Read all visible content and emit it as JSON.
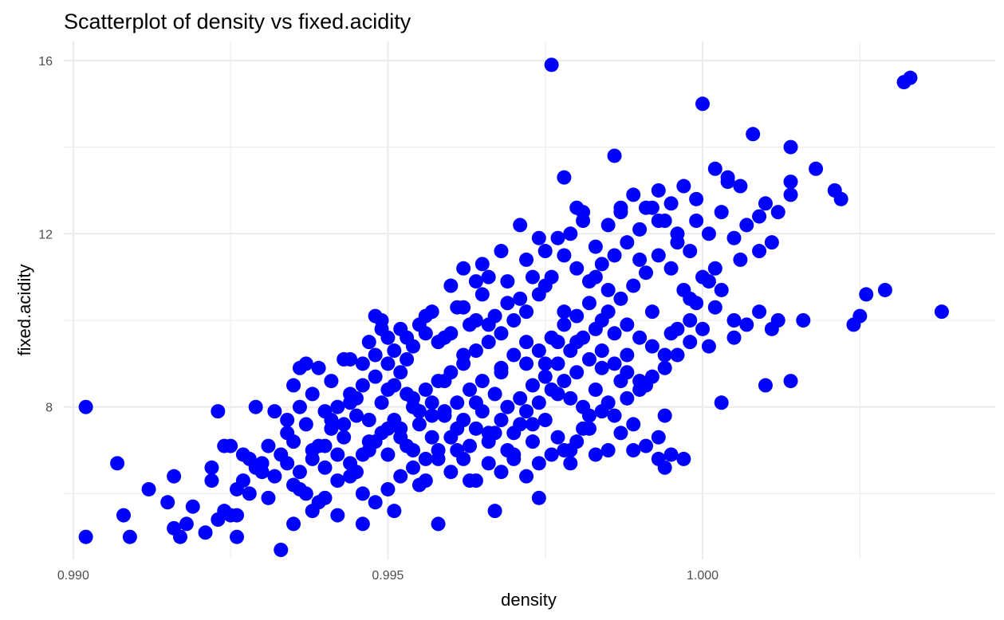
{
  "chart_data": {
    "type": "scatter",
    "title": "Scatterplot of density vs fixed.acidity",
    "xlabel": "density",
    "ylabel": "fixed.acidity",
    "xlim": [
      0.98985,
      1.00465
    ],
    "ylim": [
      4.48,
      16.44
    ],
    "x_ticks": [
      0.99,
      0.995,
      1.0
    ],
    "x_tick_labels": [
      "0.990",
      "0.995",
      "1.000"
    ],
    "y_ticks": [
      8,
      12,
      16
    ],
    "y_tick_labels": [
      "8",
      "12",
      "16"
    ],
    "grid": true,
    "point_color": "#0000ff",
    "points": [
      [
        0.9902,
        8.0
      ],
      [
        0.9902,
        5.0
      ],
      [
        0.9907,
        6.7
      ],
      [
        0.9908,
        5.5
      ],
      [
        0.9909,
        5.0
      ],
      [
        0.9912,
        6.1
      ],
      [
        0.9915,
        5.8
      ],
      [
        0.9916,
        6.4
      ],
      [
        0.9916,
        5.2
      ],
      [
        0.9917,
        5.0
      ],
      [
        0.9918,
        5.3
      ],
      [
        0.9919,
        5.7
      ],
      [
        0.9921,
        5.1
      ],
      [
        0.9922,
        6.6
      ],
      [
        0.9922,
        6.3
      ],
      [
        0.9923,
        7.9
      ],
      [
        0.9924,
        7.1
      ],
      [
        0.9925,
        5.5
      ],
      [
        0.9926,
        5.0
      ],
      [
        0.9928,
        6.8
      ],
      [
        0.9929,
        8.0
      ],
      [
        0.993,
        6.5
      ],
      [
        0.9931,
        5.9
      ],
      [
        0.9932,
        7.9
      ],
      [
        0.9933,
        4.7
      ],
      [
        0.9934,
        7.4
      ],
      [
        0.9935,
        6.2
      ],
      [
        0.9935,
        5.3
      ],
      [
        0.9936,
        8.9
      ],
      [
        0.9937,
        6.0
      ],
      [
        0.9938,
        7.0
      ],
      [
        0.9939,
        5.8
      ],
      [
        0.994,
        6.6
      ],
      [
        0.9941,
        7.7
      ],
      [
        0.9942,
        6.3
      ],
      [
        0.9943,
        9.1
      ],
      [
        0.9944,
        8.1
      ],
      [
        0.9945,
        6.5
      ],
      [
        0.9946,
        5.3
      ],
      [
        0.9947,
        7.2
      ],
      [
        0.9948,
        10.1
      ],
      [
        0.9949,
        9.8
      ],
      [
        0.995,
        8.4
      ],
      [
        0.995,
        6.9
      ],
      [
        0.9951,
        5.6
      ],
      [
        0.9952,
        7.5
      ],
      [
        0.9953,
        9.6
      ],
      [
        0.9954,
        8.0
      ],
      [
        0.9955,
        6.2
      ],
      [
        0.9956,
        10.1
      ],
      [
        0.9957,
        7.8
      ],
      [
        0.9958,
        5.3
      ],
      [
        0.9959,
        8.6
      ],
      [
        0.996,
        10.8
      ],
      [
        0.9961,
        7.0
      ],
      [
        0.9962,
        9.2
      ],
      [
        0.9963,
        6.3
      ],
      [
        0.9964,
        8.1
      ],
      [
        0.9965,
        11.3
      ],
      [
        0.9966,
        7.4
      ],
      [
        0.9967,
        5.6
      ],
      [
        0.9968,
        8.8
      ],
      [
        0.9969,
        10.4
      ],
      [
        0.997,
        6.9
      ],
      [
        0.9971,
        12.2
      ],
      [
        0.9972,
        9.0
      ],
      [
        0.9973,
        7.6
      ],
      [
        0.9974,
        5.9
      ],
      [
        0.9975,
        11.6
      ],
      [
        0.9976,
        15.9
      ],
      [
        0.9977,
        8.3
      ],
      [
        0.9978,
        10.2
      ],
      [
        0.9979,
        6.7
      ],
      [
        0.998,
        9.5
      ],
      [
        0.9981,
        12.5
      ],
      [
        0.9982,
        7.8
      ],
      [
        0.9983,
        11.0
      ],
      [
        0.9984,
        8.9
      ],
      [
        0.9985,
        10.7
      ],
      [
        0.9986,
        13.8
      ],
      [
        0.9987,
        12.6
      ],
      [
        0.9988,
        9.2
      ],
      [
        0.9989,
        7.0
      ],
      [
        0.999,
        11.4
      ],
      [
        0.9991,
        8.5
      ],
      [
        0.9992,
        10.2
      ],
      [
        0.9993,
        12.3
      ],
      [
        0.9994,
        6.6
      ],
      [
        0.9995,
        9.7
      ],
      [
        0.9996,
        11.8
      ],
      [
        0.9997,
        6.8
      ],
      [
        0.9998,
        10.5
      ],
      [
        0.9999,
        12.8
      ],
      [
        1.0,
        15.0
      ],
      [
        1.0001,
        9.4
      ],
      [
        1.0002,
        11.2
      ],
      [
        1.0003,
        8.1
      ],
      [
        1.0004,
        13.2
      ],
      [
        1.0005,
        10.0
      ],
      [
        1.0006,
        11.4
      ],
      [
        1.0008,
        14.3
      ],
      [
        1.0009,
        12.4
      ],
      [
        1.001,
        8.5
      ],
      [
        1.0012,
        10.0
      ],
      [
        1.0014,
        14.0
      ],
      [
        1.0014,
        13.2
      ],
      [
        1.0014,
        8.6
      ],
      [
        1.0016,
        10.0
      ],
      [
        1.0018,
        13.5
      ],
      [
        1.0021,
        13.0
      ],
      [
        1.0022,
        12.8
      ],
      [
        1.0024,
        9.9
      ],
      [
        1.0025,
        10.1
      ],
      [
        1.0026,
        10.6
      ],
      [
        1.0029,
        10.7
      ],
      [
        1.0032,
        15.5
      ],
      [
        1.0033,
        15.6
      ],
      [
        1.0038,
        10.2
      ],
      [
        0.9993,
        7.3
      ],
      [
        0.9994,
        7.8
      ],
      [
        0.9995,
        6.9
      ],
      [
        0.9993,
        6.8
      ],
      [
        0.9991,
        7.1
      ],
      [
        0.9989,
        7.6
      ],
      [
        0.9987,
        7.4
      ],
      [
        0.9985,
        7.0
      ],
      [
        0.9983,
        6.9
      ],
      [
        0.9981,
        7.5
      ],
      [
        0.9979,
        7.0
      ],
      [
        0.9977,
        7.3
      ],
      [
        0.9975,
        7.7
      ],
      [
        0.9973,
        7.2
      ],
      [
        0.9971,
        7.6
      ],
      [
        0.9969,
        7.0
      ],
      [
        0.9967,
        7.4
      ],
      [
        0.9965,
        7.9
      ],
      [
        0.9963,
        7.1
      ],
      [
        0.9961,
        7.5
      ],
      [
        0.9959,
        7.8
      ],
      [
        0.9957,
        7.3
      ],
      [
        0.9955,
        7.6
      ],
      [
        0.9953,
        7.1
      ],
      [
        0.9951,
        7.7
      ],
      [
        0.9949,
        7.4
      ],
      [
        0.9947,
        7.0
      ],
      [
        0.9945,
        7.8
      ],
      [
        0.9943,
        7.3
      ],
      [
        0.9941,
        7.5
      ],
      [
        0.9939,
        7.1
      ],
      [
        0.9937,
        7.6
      ],
      [
        0.9935,
        7.2
      ],
      [
        0.9933,
        6.9
      ],
      [
        0.9931,
        7.1
      ],
      [
        0.9929,
        6.6
      ],
      [
        0.9927,
        6.3
      ],
      [
        0.9926,
        6.1
      ],
      [
        0.9924,
        5.6
      ],
      [
        0.9923,
        5.4
      ],
      [
        0.9936,
        6.1
      ],
      [
        0.9938,
        5.6
      ],
      [
        0.994,
        5.9
      ],
      [
        0.9942,
        5.5
      ],
      [
        0.9944,
        6.4
      ],
      [
        0.9946,
        6.0
      ],
      [
        0.9948,
        5.8
      ],
      [
        0.995,
        6.1
      ],
      [
        0.9952,
        6.4
      ],
      [
        0.9954,
        6.6
      ],
      [
        0.9956,
        6.3
      ],
      [
        0.9958,
        6.8
      ],
      [
        0.996,
        6.5
      ],
      [
        0.9962,
        6.8
      ],
      [
        0.9964,
        6.3
      ],
      [
        0.9966,
        6.7
      ],
      [
        0.9968,
        6.5
      ],
      [
        0.997,
        6.8
      ],
      [
        0.9972,
        6.4
      ],
      [
        0.9974,
        6.7
      ],
      [
        0.9976,
        6.9
      ],
      [
        0.9978,
        7.0
      ],
      [
        0.998,
        7.2
      ],
      [
        0.9982,
        7.5
      ],
      [
        0.9984,
        7.9
      ],
      [
        0.9986,
        7.8
      ],
      [
        0.9988,
        8.2
      ],
      [
        0.999,
        8.4
      ],
      [
        0.9992,
        8.7
      ],
      [
        0.9994,
        8.9
      ],
      [
        0.9996,
        9.2
      ],
      [
        0.9998,
        9.5
      ],
      [
        1.0,
        9.8
      ],
      [
        1.0002,
        10.3
      ],
      [
        1.0,
        11.0
      ],
      [
        0.9998,
        11.6
      ],
      [
        0.9996,
        12.0
      ],
      [
        0.9994,
        12.3
      ],
      [
        0.9992,
        12.6
      ],
      [
        0.999,
        12.1
      ],
      [
        0.9988,
        11.8
      ],
      [
        0.9986,
        11.5
      ],
      [
        0.9984,
        11.3
      ],
      [
        0.9982,
        10.9
      ],
      [
        0.998,
        11.2
      ],
      [
        0.9978,
        11.5
      ],
      [
        0.9976,
        11.0
      ],
      [
        0.9974,
        10.6
      ],
      [
        0.9972,
        10.2
      ],
      [
        0.997,
        10.0
      ],
      [
        0.9968,
        9.7
      ],
      [
        0.9966,
        9.5
      ],
      [
        0.9964,
        9.3
      ],
      [
        0.9962,
        9.0
      ],
      [
        0.996,
        8.8
      ],
      [
        0.9958,
        8.6
      ],
      [
        0.9956,
        8.4
      ],
      [
        0.9954,
        8.2
      ],
      [
        0.9952,
        8.8
      ],
      [
        0.995,
        9.0
      ],
      [
        0.9948,
        8.7
      ],
      [
        0.9946,
        8.5
      ],
      [
        0.9944,
        8.3
      ],
      [
        0.9942,
        8.0
      ],
      [
        0.994,
        7.9
      ],
      [
        0.9938,
        8.3
      ],
      [
        0.9936,
        8.0
      ],
      [
        0.9934,
        7.7
      ],
      [
        0.9947,
        9.5
      ],
      [
        0.9949,
        10.0
      ],
      [
        0.9951,
        9.3
      ],
      [
        0.9953,
        9.1
      ],
      [
        0.9955,
        9.9
      ],
      [
        0.9957,
        10.2
      ],
      [
        0.9959,
        9.6
      ],
      [
        0.9961,
        10.3
      ],
      [
        0.9963,
        9.9
      ],
      [
        0.9965,
        10.6
      ],
      [
        0.9967,
        10.1
      ],
      [
        0.9969,
        10.9
      ],
      [
        0.9971,
        10.5
      ],
      [
        0.9973,
        11.0
      ],
      [
        0.9975,
        10.8
      ],
      [
        0.9977,
        11.9
      ],
      [
        0.9979,
        12.0
      ],
      [
        0.9981,
        12.3
      ],
      [
        0.9983,
        11.7
      ],
      [
        0.9985,
        12.2
      ],
      [
        0.9987,
        12.5
      ],
      [
        0.9989,
        12.9
      ],
      [
        0.9991,
        12.6
      ],
      [
        0.9993,
        13.0
      ],
      [
        0.9995,
        12.7
      ],
      [
        0.9997,
        13.1
      ],
      [
        0.9999,
        12.3
      ],
      [
        1.0001,
        12.0
      ],
      [
        1.0003,
        12.5
      ],
      [
        1.0005,
        11.9
      ],
      [
        1.0007,
        12.2
      ],
      [
        1.0009,
        11.6
      ],
      [
        1.0011,
        11.8
      ],
      [
        1.001,
        12.7
      ],
      [
        1.0012,
        12.5
      ],
      [
        1.0014,
        12.9
      ],
      [
        1.0006,
        13.1
      ],
      [
        1.0004,
        13.3
      ],
      [
        1.0002,
        13.5
      ],
      [
        1.0003,
        10.7
      ],
      [
        1.0005,
        9.6
      ],
      [
        1.0007,
        9.9
      ],
      [
        1.0009,
        10.2
      ],
      [
        1.0011,
        9.8
      ],
      [
        0.9997,
        10.7
      ],
      [
        0.9999,
        10.4
      ],
      [
        1.0001,
        10.9
      ],
      [
        0.9995,
        11.2
      ],
      [
        0.9993,
        11.5
      ],
      [
        0.9991,
        11.1
      ],
      [
        0.9989,
        10.8
      ],
      [
        0.9987,
        10.5
      ],
      [
        0.9985,
        10.2
      ],
      [
        0.9983,
        9.8
      ],
      [
        0.9981,
        9.6
      ],
      [
        0.9979,
        9.3
      ],
      [
        0.9977,
        9.0
      ],
      [
        0.9975,
        8.7
      ],
      [
        0.9973,
        8.5
      ],
      [
        0.9971,
        8.2
      ],
      [
        0.9969,
        8.0
      ],
      [
        0.9967,
        8.3
      ],
      [
        0.9965,
        8.6
      ],
      [
        0.9963,
        8.4
      ],
      [
        0.9961,
        8.1
      ],
      [
        0.9959,
        7.9
      ],
      [
        0.9957,
        8.1
      ],
      [
        0.9955,
        7.9
      ],
      [
        0.9953,
        8.3
      ],
      [
        0.9951,
        8.5
      ],
      [
        0.9949,
        8.1
      ],
      [
        0.9947,
        7.7
      ],
      [
        0.9945,
        8.2
      ],
      [
        0.9943,
        7.6
      ],
      [
        0.9941,
        8.6
      ],
      [
        0.9939,
        8.9
      ],
      [
        0.9937,
        9.0
      ],
      [
        0.9935,
        8.5
      ],
      [
        0.9968,
        8.9
      ],
      [
        0.997,
        9.2
      ],
      [
        0.9972,
        9.5
      ],
      [
        0.9974,
        9.3
      ],
      [
        0.9976,
        9.6
      ],
      [
        0.9978,
        9.9
      ],
      [
        0.998,
        10.1
      ],
      [
        0.9982,
        10.4
      ],
      [
        0.9984,
        10.0
      ],
      [
        0.9986,
        9.7
      ],
      [
        0.9988,
        9.9
      ],
      [
        0.999,
        9.6
      ],
      [
        0.9992,
        9.4
      ],
      [
        0.9994,
        9.2
      ],
      [
        0.9996,
        9.8
      ],
      [
        0.9998,
        10.0
      ],
      [
        0.9966,
        7.2
      ],
      [
        0.9968,
        7.7
      ],
      [
        0.997,
        7.4
      ],
      [
        0.9972,
        7.9
      ],
      [
        0.9974,
        8.1
      ],
      [
        0.9976,
        8.4
      ],
      [
        0.9978,
        8.6
      ],
      [
        0.998,
        8.8
      ],
      [
        0.9982,
        9.1
      ],
      [
        0.9984,
        9.3
      ],
      [
        0.9986,
        9.0
      ],
      [
        0.9988,
        8.8
      ],
      [
        0.999,
        8.6
      ],
      [
        0.9962,
        7.7
      ],
      [
        0.9964,
        7.5
      ],
      [
        0.996,
        7.3
      ],
      [
        0.9958,
        7.0
      ],
      [
        0.9956,
        6.8
      ],
      [
        0.9954,
        7.0
      ],
      [
        0.9952,
        7.3
      ],
      [
        0.995,
        7.5
      ],
      [
        0.9948,
        7.2
      ],
      [
        0.9946,
        6.9
      ],
      [
        0.9944,
        6.7
      ],
      [
        0.9942,
        6.9
      ],
      [
        0.994,
        7.1
      ],
      [
        0.9938,
        6.8
      ],
      [
        0.9936,
        6.5
      ],
      [
        0.9934,
        6.7
      ],
      [
        0.9932,
        6.4
      ],
      [
        0.993,
        6.7
      ],
      [
        0.9928,
        6.0
      ],
      [
        0.9926,
        5.5
      ],
      [
        0.9925,
        7.1
      ],
      [
        0.9927,
        6.9
      ],
      [
        0.9975,
        9.0
      ],
      [
        0.9977,
        9.5
      ],
      [
        0.9979,
        8.2
      ],
      [
        0.9981,
        8.0
      ],
      [
        0.9983,
        8.4
      ],
      [
        0.9985,
        8.1
      ],
      [
        0.9987,
        8.6
      ],
      [
        0.9966,
        9.9
      ],
      [
        0.9964,
        10.0
      ],
      [
        0.9962,
        10.3
      ],
      [
        0.996,
        9.7
      ],
      [
        0.9958,
        9.5
      ],
      [
        0.9956,
        9.7
      ],
      [
        0.9954,
        9.4
      ],
      [
        0.9952,
        9.8
      ],
      [
        0.995,
        9.6
      ],
      [
        0.9948,
        9.2
      ],
      [
        0.9946,
        9.0
      ],
      [
        0.9944,
        9.1
      ],
      [
        0.9978,
        13.3
      ],
      [
        0.998,
        12.6
      ],
      [
        0.9974,
        11.9
      ],
      [
        0.9972,
        11.4
      ],
      [
        0.9968,
        11.6
      ],
      [
        0.9966,
        11.0
      ],
      [
        0.9964,
        10.9
      ],
      [
        0.9962,
        11.2
      ]
    ]
  }
}
